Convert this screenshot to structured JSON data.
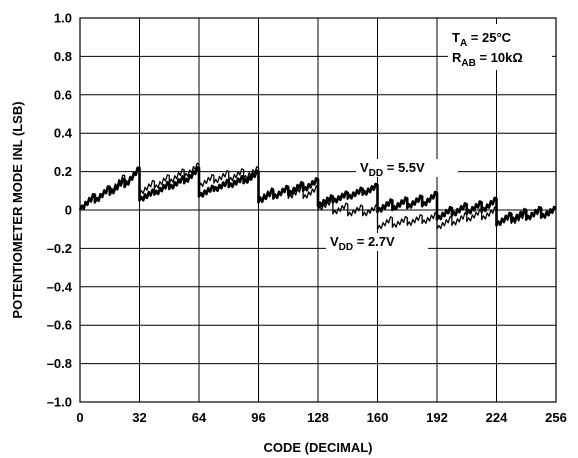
{
  "chart_data": {
    "type": "line",
    "title": "",
    "xlabel": "CODE (DECIMAL)",
    "ylabel": "POTENTIOMETER MODE INL (LSB)",
    "xlim": [
      0,
      256
    ],
    "ylim": [
      -1.0,
      1.0
    ],
    "grid": true,
    "x_ticks": [
      0,
      32,
      64,
      96,
      128,
      160,
      192,
      224,
      256
    ],
    "x_tick_labels": [
      "0",
      "32",
      "64",
      "96",
      "128",
      "160",
      "192",
      "224",
      "256"
    ],
    "y_ticks": [
      1.0,
      0.8,
      0.6,
      0.4,
      0.2,
      0,
      -0.2,
      -0.4,
      -0.6,
      -0.8,
      -1.0
    ],
    "y_tick_labels": [
      "1.0",
      "0.8",
      "0.6",
      "0.4",
      "0.2",
      "0",
      "–0.2",
      "–0.4",
      "–0.6",
      "–0.8",
      "–1.0"
    ],
    "conditions": {
      "ta": {
        "main": "T",
        "sub": "A",
        "rest": " = 25°C"
      },
      "rab": {
        "main": "R",
        "sub": "AB",
        "rest": " = 10kΩ"
      }
    },
    "series": [
      {
        "name": "VDD = 5.5V",
        "label": {
          "main": "V",
          "sub": "DD",
          "rest": " = 5.5V"
        },
        "stroke_width": 2.6,
        "segments": [
          {
            "x_start": 0,
            "x_end": 8,
            "y_start": 0.0,
            "y_end": 0.08
          },
          {
            "x_start": 8,
            "x_end": 16,
            "y_start": 0.04,
            "y_end": 0.12
          },
          {
            "x_start": 16,
            "x_end": 24,
            "y_start": 0.08,
            "y_end": 0.16
          },
          {
            "x_start": 24,
            "x_end": 32,
            "y_start": 0.12,
            "y_end": 0.22
          },
          {
            "x_start": 32,
            "x_end": 40,
            "y_start": 0.05,
            "y_end": 0.1
          },
          {
            "x_start": 40,
            "x_end": 48,
            "y_start": 0.08,
            "y_end": 0.14
          },
          {
            "x_start": 48,
            "x_end": 56,
            "y_start": 0.11,
            "y_end": 0.17
          },
          {
            "x_start": 56,
            "x_end": 64,
            "y_start": 0.14,
            "y_end": 0.22
          },
          {
            "x_start": 64,
            "x_end": 72,
            "y_start": 0.07,
            "y_end": 0.12
          },
          {
            "x_start": 72,
            "x_end": 80,
            "y_start": 0.1,
            "y_end": 0.15
          },
          {
            "x_start": 80,
            "x_end": 88,
            "y_start": 0.12,
            "y_end": 0.17
          },
          {
            "x_start": 88,
            "x_end": 96,
            "y_start": 0.14,
            "y_end": 0.2
          },
          {
            "x_start": 96,
            "x_end": 104,
            "y_start": 0.04,
            "y_end": 0.1
          },
          {
            "x_start": 104,
            "x_end": 112,
            "y_start": 0.06,
            "y_end": 0.12
          },
          {
            "x_start": 112,
            "x_end": 120,
            "y_start": 0.08,
            "y_end": 0.14
          },
          {
            "x_start": 120,
            "x_end": 128,
            "y_start": 0.1,
            "y_end": 0.16
          },
          {
            "x_start": 128,
            "x_end": 136,
            "y_start": 0.02,
            "y_end": 0.07
          },
          {
            "x_start": 136,
            "x_end": 144,
            "y_start": 0.04,
            "y_end": 0.09
          },
          {
            "x_start": 144,
            "x_end": 152,
            "y_start": 0.06,
            "y_end": 0.11
          },
          {
            "x_start": 152,
            "x_end": 160,
            "y_start": 0.08,
            "y_end": 0.13
          },
          {
            "x_start": 160,
            "x_end": 168,
            "y_start": -0.01,
            "y_end": 0.05
          },
          {
            "x_start": 168,
            "x_end": 176,
            "y_start": 0.0,
            "y_end": 0.06
          },
          {
            "x_start": 176,
            "x_end": 184,
            "y_start": 0.01,
            "y_end": 0.07
          },
          {
            "x_start": 184,
            "x_end": 192,
            "y_start": 0.02,
            "y_end": 0.09
          },
          {
            "x_start": 192,
            "x_end": 200,
            "y_start": -0.05,
            "y_end": 0.01
          },
          {
            "x_start": 200,
            "x_end": 208,
            "y_start": -0.03,
            "y_end": 0.03
          },
          {
            "x_start": 208,
            "x_end": 216,
            "y_start": -0.02,
            "y_end": 0.04
          },
          {
            "x_start": 216,
            "x_end": 224,
            "y_start": -0.01,
            "y_end": 0.06
          },
          {
            "x_start": 224,
            "x_end": 232,
            "y_start": -0.08,
            "y_end": -0.02
          },
          {
            "x_start": 232,
            "x_end": 240,
            "y_start": -0.06,
            "y_end": 0.0
          },
          {
            "x_start": 240,
            "x_end": 248,
            "y_start": -0.05,
            "y_end": 0.01
          },
          {
            "x_start": 248,
            "x_end": 256,
            "y_start": -0.04,
            "y_end": 0.01
          }
        ]
      },
      {
        "name": "VDD = 2.7V",
        "label": {
          "main": "V",
          "sub": "DD",
          "rest": " = 2.7V"
        },
        "stroke_width": 1.3,
        "segments": [
          {
            "x_start": 0,
            "x_end": 8,
            "y_start": 0.0,
            "y_end": 0.07
          },
          {
            "x_start": 8,
            "x_end": 16,
            "y_start": 0.04,
            "y_end": 0.12
          },
          {
            "x_start": 16,
            "x_end": 24,
            "y_start": 0.09,
            "y_end": 0.18
          },
          {
            "x_start": 24,
            "x_end": 32,
            "y_start": 0.13,
            "y_end": 0.22
          },
          {
            "x_start": 32,
            "x_end": 40,
            "y_start": 0.08,
            "y_end": 0.15
          },
          {
            "x_start": 40,
            "x_end": 48,
            "y_start": 0.11,
            "y_end": 0.18
          },
          {
            "x_start": 48,
            "x_end": 56,
            "y_start": 0.14,
            "y_end": 0.21
          },
          {
            "x_start": 56,
            "x_end": 64,
            "y_start": 0.17,
            "y_end": 0.24
          },
          {
            "x_start": 64,
            "x_end": 72,
            "y_start": 0.12,
            "y_end": 0.18
          },
          {
            "x_start": 72,
            "x_end": 80,
            "y_start": 0.14,
            "y_end": 0.2
          },
          {
            "x_start": 80,
            "x_end": 88,
            "y_start": 0.15,
            "y_end": 0.21
          },
          {
            "x_start": 88,
            "x_end": 96,
            "y_start": 0.16,
            "y_end": 0.22
          },
          {
            "x_start": 96,
            "x_end": 104,
            "y_start": 0.05,
            "y_end": 0.11
          },
          {
            "x_start": 104,
            "x_end": 112,
            "y_start": 0.06,
            "y_end": 0.12
          },
          {
            "x_start": 112,
            "x_end": 120,
            "y_start": 0.06,
            "y_end": 0.12
          },
          {
            "x_start": 120,
            "x_end": 128,
            "y_start": 0.06,
            "y_end": 0.12
          },
          {
            "x_start": 128,
            "x_end": 136,
            "y_start": 0.0,
            "y_end": 0.05
          },
          {
            "x_start": 136,
            "x_end": 144,
            "y_start": -0.02,
            "y_end": 0.03
          },
          {
            "x_start": 144,
            "x_end": 152,
            "y_start": -0.03,
            "y_end": 0.02
          },
          {
            "x_start": 152,
            "x_end": 160,
            "y_start": -0.03,
            "y_end": 0.02
          },
          {
            "x_start": 160,
            "x_end": 168,
            "y_start": -0.1,
            "y_end": -0.04
          },
          {
            "x_start": 168,
            "x_end": 176,
            "y_start": -0.09,
            "y_end": -0.04
          },
          {
            "x_start": 176,
            "x_end": 184,
            "y_start": -0.08,
            "y_end": -0.03
          },
          {
            "x_start": 184,
            "x_end": 192,
            "y_start": -0.07,
            "y_end": -0.02
          },
          {
            "x_start": 192,
            "x_end": 200,
            "y_start": -0.1,
            "y_end": -0.04
          },
          {
            "x_start": 200,
            "x_end": 208,
            "y_start": -0.08,
            "y_end": -0.02
          },
          {
            "x_start": 208,
            "x_end": 216,
            "y_start": -0.06,
            "y_end": 0.0
          },
          {
            "x_start": 216,
            "x_end": 224,
            "y_start": -0.05,
            "y_end": 0.01
          },
          {
            "x_start": 224,
            "x_end": 232,
            "y_start": -0.08,
            "y_end": -0.03
          },
          {
            "x_start": 232,
            "x_end": 240,
            "y_start": -0.07,
            "y_end": -0.02
          },
          {
            "x_start": 240,
            "x_end": 248,
            "y_start": -0.05,
            "y_end": 0.0
          },
          {
            "x_start": 248,
            "x_end": 256,
            "y_start": -0.04,
            "y_end": 0.01
          }
        ]
      }
    ]
  }
}
